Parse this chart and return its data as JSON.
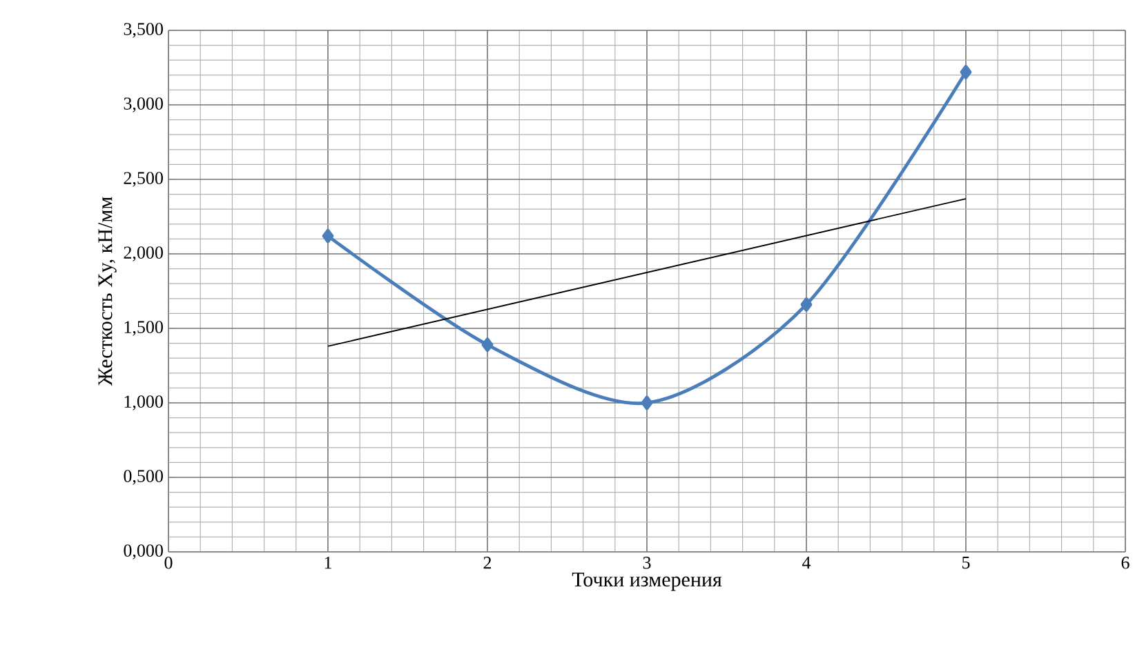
{
  "chart_data": {
    "type": "line",
    "xlabel": "Точки измерения",
    "ylabel": "Жесткость Xy, кН/мм",
    "xlim": [
      0,
      6
    ],
    "xticks": [
      0,
      1,
      2,
      3,
      4,
      5,
      6
    ],
    "ylim": [
      0,
      3.5
    ],
    "yticks": [
      {
        "value": 0,
        "label": "0,000"
      },
      {
        "value": 0.5,
        "label": "0,500"
      },
      {
        "value": 1,
        "label": "1,000"
      },
      {
        "value": 1.5,
        "label": "1,500"
      },
      {
        "value": 2,
        "label": "2,000"
      },
      {
        "value": 2.5,
        "label": "2,500"
      },
      {
        "value": 3,
        "label": "3,000"
      },
      {
        "value": 3.5,
        "label": "3,500"
      }
    ],
    "grid": true,
    "marker": "diamond",
    "line_style": "solid",
    "series": [
      {
        "color": "#4a7ebb",
        "x": [
          1,
          2,
          3,
          4,
          5
        ],
        "values": [
          2.12,
          1.39,
          1.0,
          1.66,
          3.22
        ]
      },
      {
        "type": "line",
        "marker": "none",
        "color": "#000000",
        "x": [
          1,
          5
        ],
        "values": [
          1.38,
          2.37
        ]
      }
    ]
  }
}
